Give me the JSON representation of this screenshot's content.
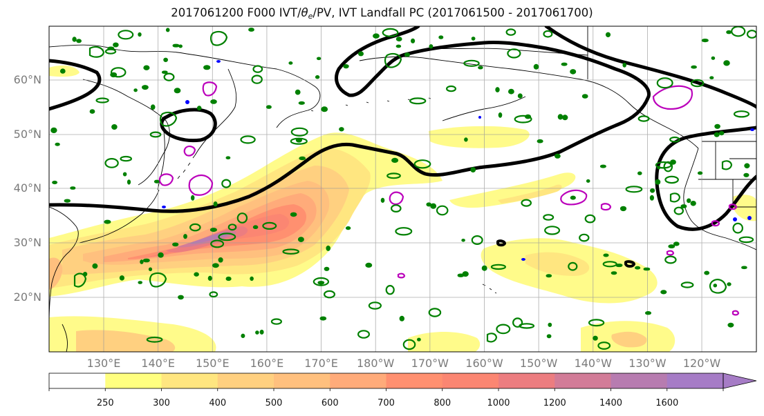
{
  "title": {
    "prefix": "2017061200 F000 IVT/",
    "theta_sym": "θ",
    "theta_sub": "e",
    "suffix": "/PV, IVT Landfall PC (2017061500 - 2017061700)"
  },
  "map": {
    "lat_labels": [
      {
        "lat": 60,
        "text": "60°N"
      },
      {
        "lat": 50,
        "text": "50°N"
      },
      {
        "lat": 40,
        "text": "40°N"
      },
      {
        "lat": 30,
        "text": "30°N"
      },
      {
        "lat": 20,
        "text": "20°N"
      }
    ],
    "lon_labels": [
      {
        "lon": 130,
        "text": "130°E"
      },
      {
        "lon": 140,
        "text": "140°E"
      },
      {
        "lon": 150,
        "text": "150°E"
      },
      {
        "lon": 160,
        "text": "160°E"
      },
      {
        "lon": 170,
        "text": "170°E"
      },
      {
        "lon": 180,
        "text": "180°W"
      },
      {
        "lon": 190,
        "text": "170°W"
      },
      {
        "lon": 200,
        "text": "160°W"
      },
      {
        "lon": 210,
        "text": "150°W"
      },
      {
        "lon": 220,
        "text": "140°W"
      },
      {
        "lon": 230,
        "text": "130°W"
      },
      {
        "lon": 240,
        "text": "120°W"
      }
    ],
    "colors": {
      "theta_e_contour": "#000000",
      "pv_contour": "#008000",
      "pc_contour": "#bb00bb",
      "pv_negative": "#0000ff"
    }
  },
  "colorbar": {
    "levels": [
      "250",
      "300",
      "400",
      "500",
      "600",
      "700",
      "800",
      "1000",
      "1200",
      "1400",
      "1600"
    ],
    "colors": [
      "#ffffff",
      "#ffff80",
      "#ffe680",
      "#ffd080",
      "#ffc07e",
      "#ffab7a",
      "#ff9070",
      "#fb8672",
      "#ec7d80",
      "#d27c98",
      "#b77cb0",
      "#a67cc6"
    ]
  }
}
